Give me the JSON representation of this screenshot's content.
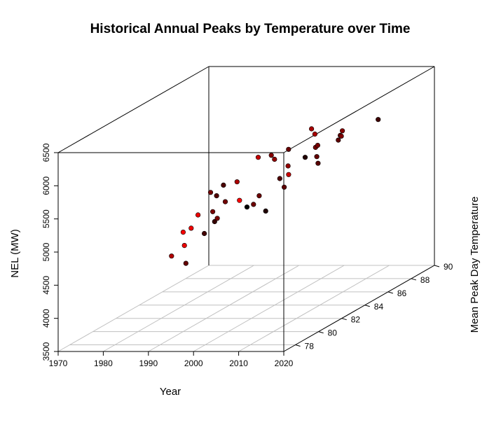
{
  "chart_data": {
    "type": "scatter3d",
    "title": "Historical Annual Peaks by Temperature over Time",
    "xlabel": "Year",
    "ylabel": "NEL (MW)",
    "zlabel": "Mean Peak Day Temperature",
    "xlim": [
      1970,
      2020
    ],
    "ylim": [
      3500,
      6500
    ],
    "zlim": [
      77,
      90
    ],
    "x_ticks": [
      1970,
      1980,
      1990,
      2000,
      2010,
      2020
    ],
    "y_ticks": [
      3500,
      4000,
      4500,
      5000,
      5500,
      6000,
      6500
    ],
    "z_ticks": [
      78,
      80,
      82,
      84,
      86,
      88,
      90
    ],
    "grid": "floor",
    "colors": {
      "hot": "#ff0000",
      "cool": "#000000",
      "box": "#000000",
      "grid": "#c0c0c0"
    },
    "color_encoding": "temperature: black (cool) to red (hot)",
    "points": [
      {
        "year": 1977,
        "mw": 4000,
        "temp": 85.3
      },
      {
        "year": 1978,
        "mw": 4330,
        "temp": 86.5
      },
      {
        "year": 1979,
        "mw": 4460,
        "temp": 87.0
      },
      {
        "year": 1980,
        "mw": 4440,
        "temp": 89.4
      },
      {
        "year": 1981,
        "mw": 4390,
        "temp": 82.5
      },
      {
        "year": 1982,
        "mw": 4950,
        "temp": 86.0
      },
      {
        "year": 1983,
        "mw": 5090,
        "temp": 86.2
      },
      {
        "year": 1984,
        "mw": 5130,
        "temp": 84.7
      },
      {
        "year": 1985,
        "mw": 4860,
        "temp": 84.5
      },
      {
        "year": 1986,
        "mw": 4760,
        "temp": 84.5
      },
      {
        "year": 1987,
        "mw": 4980,
        "temp": 84.8
      },
      {
        "year": 1988,
        "mw": 4530,
        "temp": 87.9
      },
      {
        "year": 1989,
        "mw": 4750,
        "temp": 80.5
      },
      {
        "year": 1990,
        "mw": 5000,
        "temp": 80.0
      },
      {
        "year": 1991,
        "mw": 5030,
        "temp": 80.3
      },
      {
        "year": 1992,
        "mw": 5210,
        "temp": 80.5
      },
      {
        "year": 1993,
        "mw": 4930,
        "temp": 84.9
      },
      {
        "year": 1994,
        "mw": 5050,
        "temp": 85.0
      },
      {
        "year": 1995,
        "mw": 5490,
        "temp": 82.7
      },
      {
        "year": 1996,
        "mw": 5210,
        "temp": 86.0
      },
      {
        "year": 1997,
        "mw": 5350,
        "temp": 87.8
      },
      {
        "year": 1998,
        "mw": 5120,
        "temp": 85.6
      },
      {
        "year": 1999,
        "mw": 5750,
        "temp": 84.1
      },
      {
        "year": 2000,
        "mw": 5730,
        "temp": 85.2
      },
      {
        "year": 2001,
        "mw": 5740,
        "temp": 83.6
      },
      {
        "year": 2002,
        "mw": 5950,
        "temp": 81.8
      },
      {
        "year": 2003,
        "mw": 5500,
        "temp": 79.8
      },
      {
        "year": 2004,
        "mw": 5640,
        "temp": 83.6
      },
      {
        "year": 2005,
        "mw": 5460,
        "temp": 85.8
      },
      {
        "year": 2006,
        "mw": 5610,
        "temp": 85.3
      },
      {
        "year": 2007,
        "mw": 5800,
        "temp": 84.8
      },
      {
        "year": 2008,
        "mw": 5850,
        "temp": 84.6
      },
      {
        "year": 2009,
        "mw": 5700,
        "temp": 81.7
      },
      {
        "year": 2010,
        "mw": 5830,
        "temp": 85.6
      },
      {
        "year": 2011,
        "mw": 6270,
        "temp": 82.9
      },
      {
        "year": 2012,
        "mw": 6200,
        "temp": 82.8
      },
      {
        "year": 2013,
        "mw": 6000,
        "temp": 84.6
      },
      {
        "year": 2014,
        "mw": 6020,
        "temp": 84.3
      },
      {
        "year": 2015,
        "mw": 6130,
        "temp": 84.0
      },
      {
        "year": 2016,
        "mw": 6030,
        "temp": 86.7
      }
    ]
  }
}
